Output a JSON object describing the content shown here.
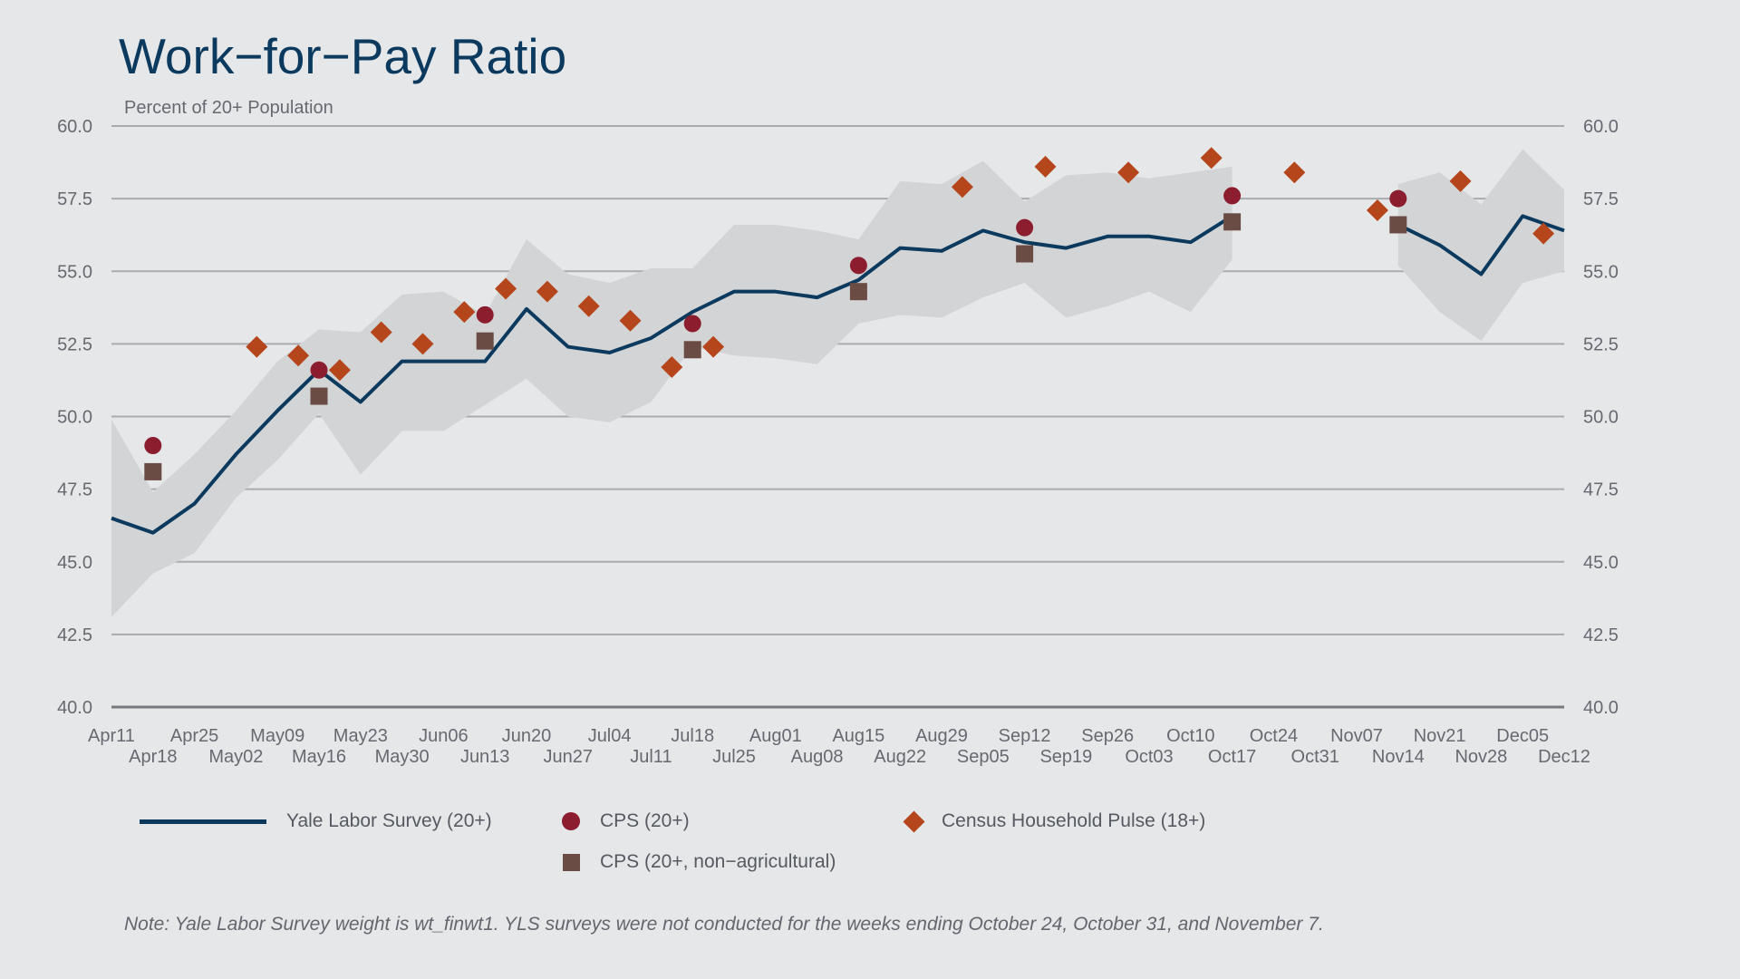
{
  "title": "Work−for−Pay Ratio",
  "note": "Note: Yale Labor Survey weight is wt_finwt1. YLS surveys were not conducted for the weeks ending October 24, October 31, and November 7.",
  "colors": {
    "background": "#e6e7e9",
    "band": "#d3d4d6",
    "yls": "#0b3a5e",
    "cps": "#8c1d2e",
    "census": "#b5461c",
    "cps_nonag": "#6b4c45",
    "grid": "#a9abae"
  },
  "chart_data": {
    "type": "line",
    "ylabel": "Percent of 20+ Population",
    "ylim": [
      40,
      60
    ],
    "yticks": [
      "40.0",
      "42.5",
      "45.0",
      "47.5",
      "50.0",
      "52.5",
      "55.0",
      "57.5",
      "60.0"
    ],
    "grid": true,
    "categories": [
      "Apr11",
      "Apr18",
      "Apr25",
      "May02",
      "May09",
      "May16",
      "May23",
      "May30",
      "Jun06",
      "Jun13",
      "Jun20",
      "Jun27",
      "Jul04",
      "Jul11",
      "Jul18",
      "Jul25",
      "Aug01",
      "Aug08",
      "Aug15",
      "Aug22",
      "Aug29",
      "Sep05",
      "Sep12",
      "Sep19",
      "Sep26",
      "Oct03",
      "Oct10",
      "Oct17",
      "Oct24",
      "Oct31",
      "Nov07",
      "Nov14",
      "Nov21",
      "Nov28",
      "Dec05",
      "Dec12"
    ],
    "legend_placement": "bottom",
    "series": [
      {
        "name": "Yale Labor Survey (20+)",
        "kind": "line",
        "values": [
          46.5,
          46.0,
          47.0,
          48.7,
          50.2,
          51.6,
          50.5,
          51.9,
          51.9,
          51.9,
          53.7,
          52.4,
          52.2,
          52.7,
          53.6,
          54.3,
          54.3,
          54.1,
          54.7,
          55.8,
          55.7,
          56.4,
          56.0,
          55.8,
          56.2,
          56.2,
          56.0,
          56.9,
          null,
          null,
          null,
          56.6,
          55.9,
          54.9,
          56.9,
          56.4
        ],
        "band_low": [
          43.1,
          44.6,
          45.3,
          47.2,
          48.5,
          50.1,
          48.0,
          49.5,
          49.5,
          50.4,
          51.3,
          50.0,
          49.8,
          50.5,
          52.4,
          52.1,
          52.0,
          51.8,
          53.2,
          53.5,
          53.4,
          54.1,
          54.6,
          53.4,
          53.8,
          54.3,
          53.6,
          55.4,
          null,
          null,
          null,
          55.2,
          53.6,
          52.6,
          54.6,
          55.0
        ],
        "band_high": [
          49.9,
          47.4,
          48.7,
          50.2,
          51.9,
          53.0,
          52.9,
          54.2,
          54.3,
          53.5,
          56.1,
          54.9,
          54.6,
          55.1,
          55.1,
          56.6,
          56.6,
          56.4,
          56.1,
          58.1,
          58.0,
          58.8,
          57.4,
          58.3,
          58.4,
          58.2,
          58.4,
          58.6,
          null,
          null,
          null,
          58.0,
          58.4,
          57.3,
          59.2,
          57.8
        ]
      },
      {
        "name": "CPS (20+)",
        "kind": "dot",
        "points": [
          [
            "Apr18",
            49.0
          ],
          [
            "May16",
            51.6
          ],
          [
            "Jun13",
            53.5
          ],
          [
            "Jul18",
            53.2
          ],
          [
            "Aug15",
            55.2
          ],
          [
            "Sep12",
            56.5
          ],
          [
            "Oct17",
            57.6
          ],
          [
            "Nov14",
            57.5
          ]
        ]
      },
      {
        "name": "CPS (20+, non−agricultural)",
        "kind": "square",
        "points": [
          [
            "Apr18",
            48.1
          ],
          [
            "May16",
            50.7
          ],
          [
            "Jun13",
            52.6
          ],
          [
            "Jul18",
            52.3
          ],
          [
            "Aug15",
            54.3
          ],
          [
            "Sep12",
            55.6
          ],
          [
            "Oct17",
            56.7
          ],
          [
            "Nov14",
            56.6
          ]
        ]
      },
      {
        "name": "Census Household Pulse (18+)",
        "kind": "diamond",
        "points": [
          [
            3.5,
            52.4
          ],
          [
            4.5,
            52.1
          ],
          [
            5.5,
            51.6
          ],
          [
            6.5,
            52.9
          ],
          [
            7.5,
            52.5
          ],
          [
            8.5,
            53.6
          ],
          [
            9.5,
            54.4
          ],
          [
            10.5,
            54.3
          ],
          [
            11.5,
            53.8
          ],
          [
            12.5,
            53.3
          ],
          [
            13.5,
            51.7
          ],
          [
            14.5,
            52.4
          ],
          [
            20.5,
            57.9
          ],
          [
            22.5,
            58.6
          ],
          [
            24.5,
            58.4
          ],
          [
            26.5,
            58.9
          ],
          [
            28.5,
            58.4
          ],
          [
            30.5,
            57.1
          ],
          [
            32.5,
            58.1
          ],
          [
            34.5,
            56.3
          ]
        ]
      }
    ]
  }
}
